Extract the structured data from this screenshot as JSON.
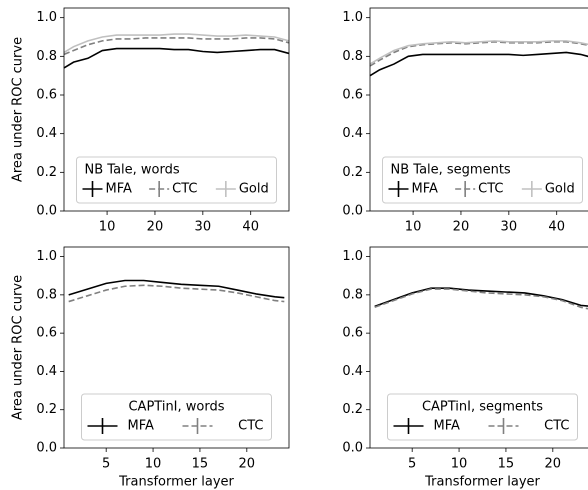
{
  "chart_data": [
    {
      "type": "line",
      "ylabel": "Area under ROC curve",
      "legend_title": "NB Tale, words",
      "legend": "lower center",
      "legend_columns": 3,
      "x": [
        1,
        3,
        6,
        9,
        12,
        15,
        18,
        21,
        24,
        27,
        30,
        33,
        36,
        39,
        42,
        45,
        48
      ],
      "xlim": [
        1,
        48
      ],
      "xticks": [
        10,
        20,
        30,
        40
      ],
      "ylim": [
        0,
        1.05
      ],
      "yticks": [
        {
          "value": 0,
          "label": "0.0"
        },
        0.2,
        0.4,
        0.6,
        0.8,
        {
          "value": 1,
          "label": "1.0"
        }
      ],
      "series": [
        {
          "name": "MFA",
          "color": "#000000",
          "linestyle": "solid",
          "values": [
            0.74,
            0.77,
            0.79,
            0.83,
            0.84,
            0.84,
            0.84,
            0.84,
            0.835,
            0.835,
            0.825,
            0.82,
            0.825,
            0.83,
            0.835,
            0.835,
            0.815
          ]
        },
        {
          "name": "CTC",
          "color": "#808080",
          "linestyle": "dashed",
          "values": [
            0.81,
            0.83,
            0.86,
            0.88,
            0.89,
            0.89,
            0.895,
            0.895,
            0.895,
            0.895,
            0.89,
            0.89,
            0.89,
            0.895,
            0.895,
            0.89,
            0.87
          ]
        },
        {
          "name": "Gold",
          "color": "#c0c0c0",
          "linestyle": "solid",
          "values": [
            0.82,
            0.85,
            0.88,
            0.9,
            0.91,
            0.91,
            0.91,
            0.91,
            0.915,
            0.915,
            0.91,
            0.905,
            0.905,
            0.91,
            0.905,
            0.9,
            0.88
          ]
        }
      ]
    },
    {
      "type": "line",
      "legend_title": "NB Tale, segments",
      "legend": "lower center",
      "legend_columns": 3,
      "x": [
        1,
        3,
        6,
        9,
        12,
        15,
        18,
        21,
        24,
        27,
        30,
        33,
        36,
        39,
        42,
        45,
        48
      ],
      "xlim": [
        1,
        48
      ],
      "xticks": [
        10,
        20,
        30,
        40
      ],
      "ylim": [
        0,
        1.05
      ],
      "yticks": [
        {
          "value": 0,
          "label": "0.0"
        },
        0.2,
        0.4,
        0.6,
        0.8,
        {
          "value": 1,
          "label": "1.0"
        }
      ],
      "series": [
        {
          "name": "MFA",
          "color": "#000000",
          "linestyle": "solid",
          "values": [
            0.7,
            0.73,
            0.76,
            0.8,
            0.81,
            0.81,
            0.81,
            0.81,
            0.81,
            0.81,
            0.81,
            0.805,
            0.81,
            0.815,
            0.82,
            0.81,
            0.79
          ]
        },
        {
          "name": "CTC",
          "color": "#808080",
          "linestyle": "dashed",
          "values": [
            0.75,
            0.78,
            0.82,
            0.85,
            0.86,
            0.865,
            0.87,
            0.865,
            0.87,
            0.875,
            0.87,
            0.87,
            0.87,
            0.875,
            0.875,
            0.865,
            0.85
          ]
        },
        {
          "name": "Gold",
          "color": "#c0c0c0",
          "linestyle": "solid",
          "values": [
            0.76,
            0.79,
            0.83,
            0.855,
            0.865,
            0.87,
            0.875,
            0.87,
            0.875,
            0.88,
            0.875,
            0.875,
            0.875,
            0.88,
            0.88,
            0.87,
            0.855
          ]
        }
      ]
    },
    {
      "type": "line",
      "ylabel": "Area under ROC curve",
      "xlabel": "Transformer layer",
      "legend_title": "CAPTinI, words",
      "legend": "lower center",
      "legend_columns": 2,
      "x": [
        1,
        3,
        5,
        7,
        9,
        11,
        13,
        15,
        17,
        19,
        21,
        23,
        24
      ],
      "xlim": [
        0.5,
        24.5
      ],
      "xticks": [
        5,
        10,
        15,
        20
      ],
      "ylim": [
        0,
        1.05
      ],
      "yticks": [
        {
          "value": 0,
          "label": "0.0"
        },
        0.2,
        0.4,
        0.6,
        0.8,
        {
          "value": 1,
          "label": "1.0"
        }
      ],
      "series": [
        {
          "name": "MFA",
          "color": "#000000",
          "linestyle": "solid",
          "values": [
            0.8,
            0.83,
            0.86,
            0.875,
            0.875,
            0.865,
            0.855,
            0.85,
            0.845,
            0.825,
            0.805,
            0.79,
            0.785
          ]
        },
        {
          "name": "CTC",
          "color": "#808080",
          "linestyle": "dashed",
          "values": [
            0.765,
            0.795,
            0.825,
            0.845,
            0.85,
            0.845,
            0.835,
            0.83,
            0.825,
            0.81,
            0.79,
            0.77,
            0.765
          ]
        }
      ]
    },
    {
      "type": "line",
      "xlabel": "Transformer layer",
      "legend_title": "CAPTinI, segments",
      "legend": "lower center",
      "legend_columns": 2,
      "x": [
        1,
        3,
        5,
        7,
        9,
        11,
        13,
        15,
        17,
        19,
        21,
        23,
        24
      ],
      "xlim": [
        0.5,
        24.5
      ],
      "xticks": [
        5,
        10,
        15,
        20
      ],
      "ylim": [
        0,
        1.05
      ],
      "yticks": [
        {
          "value": 0,
          "label": "0.0"
        },
        0.2,
        0.4,
        0.6,
        0.8,
        {
          "value": 1,
          "label": "1.0"
        }
      ],
      "series": [
        {
          "name": "MFA",
          "color": "#000000",
          "linestyle": "solid",
          "values": [
            0.74,
            0.775,
            0.81,
            0.835,
            0.835,
            0.825,
            0.82,
            0.815,
            0.81,
            0.795,
            0.775,
            0.745,
            0.74
          ]
        },
        {
          "name": "CTC",
          "color": "#808080",
          "linestyle": "dashed",
          "values": [
            0.735,
            0.77,
            0.805,
            0.83,
            0.83,
            0.82,
            0.81,
            0.805,
            0.8,
            0.79,
            0.77,
            0.735,
            0.725
          ]
        }
      ]
    }
  ]
}
